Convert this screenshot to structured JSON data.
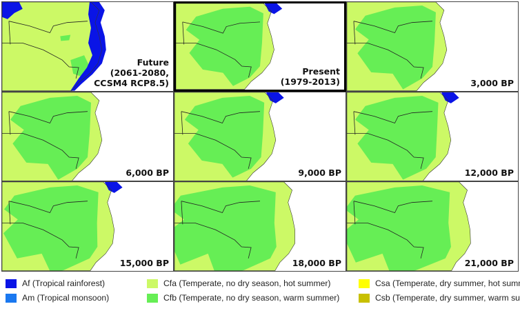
{
  "panels": [
    {
      "label": [
        "Future",
        "(2061-2080,",
        "CCSM4 RCP8.5)"
      ],
      "scenario": "future",
      "highlighted": false
    },
    {
      "label": [
        "Present",
        "(1979-2013)"
      ],
      "scenario": "present",
      "highlighted": true
    },
    {
      "label": [
        "3,000 BP"
      ],
      "scenario": "3000",
      "highlighted": false
    },
    {
      "label": [
        "6,000 BP"
      ],
      "scenario": "6000",
      "highlighted": false
    },
    {
      "label": [
        "9,000 BP"
      ],
      "scenario": "9000",
      "highlighted": false
    },
    {
      "label": [
        "12,000 BP"
      ],
      "scenario": "12000",
      "highlighted": false
    },
    {
      "label": [
        "15,000 BP"
      ],
      "scenario": "15000",
      "highlighted": false
    },
    {
      "label": [
        "18,000 BP"
      ],
      "scenario": "18000",
      "highlighted": false
    },
    {
      "label": [
        "21,000 BP"
      ],
      "scenario": "21000",
      "highlighted": false
    }
  ],
  "legend": [
    {
      "code": "Af",
      "text": "Af (Tropical rainforest)",
      "color": "#0a14e6"
    },
    {
      "code": "Cfa",
      "text": "Cfa (Temperate, no dry season, hot summer)",
      "color": "#ccf966"
    },
    {
      "code": "Csa",
      "text": "Csa (Temperate, dry summer, hot summer)",
      "color": "#ffff00"
    },
    {
      "code": "Am",
      "text": "Am (Tropical monsoon)",
      "color": "#1a78f0"
    },
    {
      "code": "Cfb",
      "text": "Cfb (Temperate, no dry season, warm summer)",
      "color": "#66ee55"
    },
    {
      "code": "Csb",
      "text": "Csb (Temperate, dry summer, warm summer)",
      "color": "#c8c000"
    }
  ]
}
